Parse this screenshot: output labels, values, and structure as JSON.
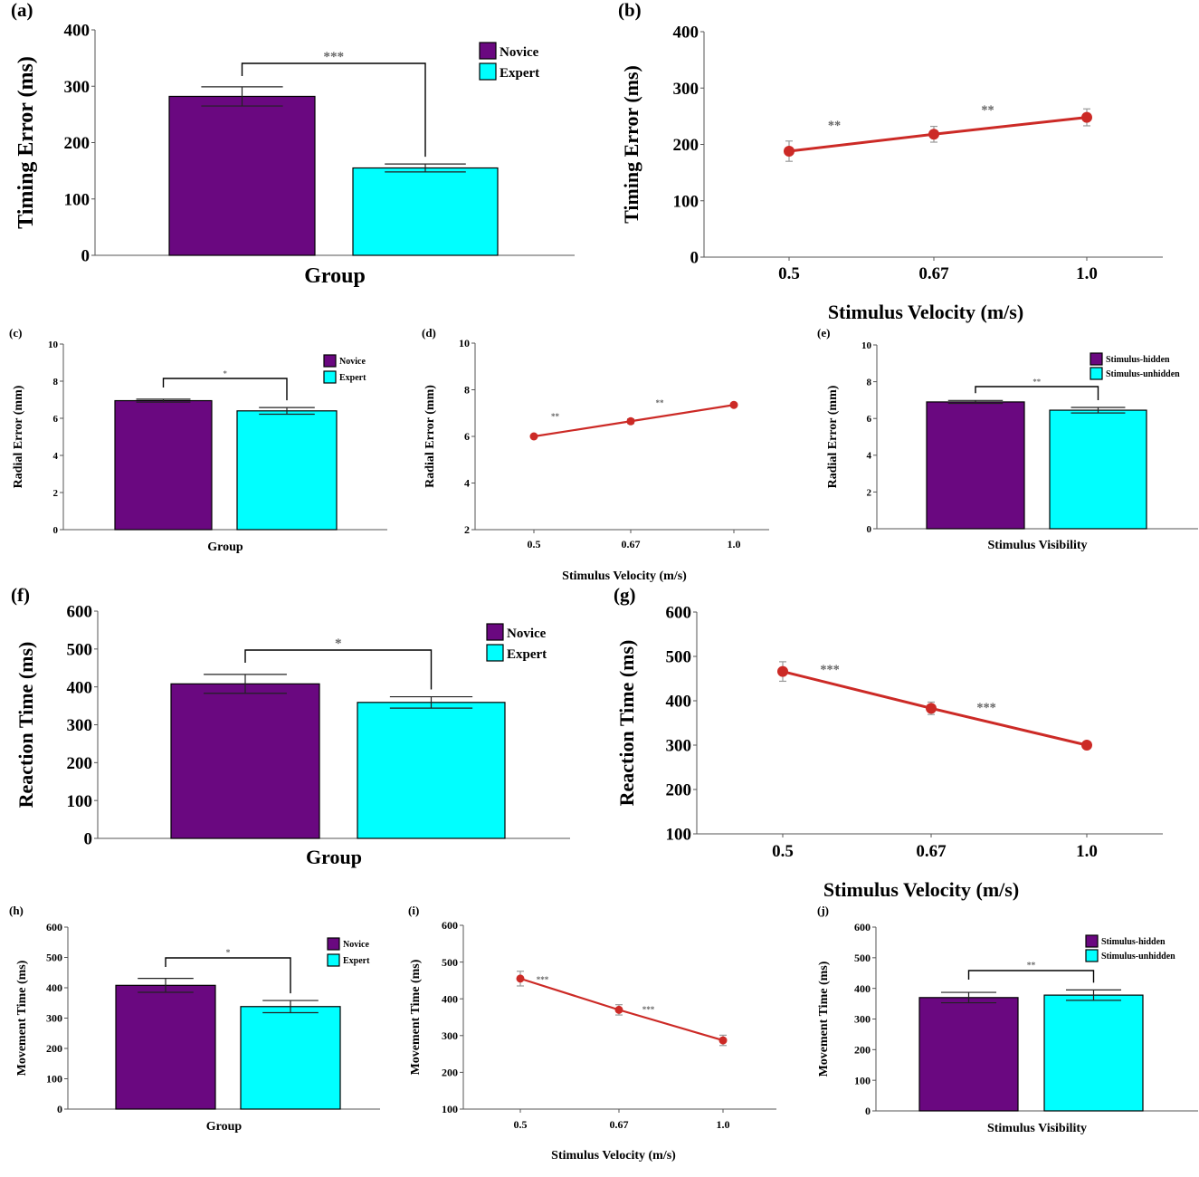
{
  "colors": {
    "novice": "#6a0880",
    "expert": "#00ffff",
    "line": "#cc2a26",
    "star": "#666666"
  },
  "chart_data": [
    {
      "panel": "(a)",
      "type": "bar",
      "categories": [
        "Novice",
        "Expert"
      ],
      "values": [
        282,
        155
      ],
      "errors": [
        17,
        7
      ],
      "legend": [
        "Novice",
        "Expert"
      ],
      "xlabel": "Group",
      "ylabel": "Timing Error (ms)",
      "ylim": [
        0,
        400
      ],
      "yticks": [
        "0",
        "100",
        "200",
        "300",
        "400"
      ],
      "significance": "***",
      "legend_position": "top-right"
    },
    {
      "panel": "(b)",
      "type": "line",
      "x": [
        "0.5",
        "0.67",
        "1.0"
      ],
      "values": [
        188,
        218,
        248
      ],
      "errors": [
        18,
        14,
        15
      ],
      "xlabel": "Stimulus Velocity (m/s)",
      "ylabel": "Timing Error (ms)",
      "ylim": [
        0,
        400
      ],
      "yticks": [
        "0",
        "100",
        "200",
        "300",
        "400"
      ],
      "significance": [
        "**",
        "**"
      ]
    },
    {
      "panel": "(c)",
      "type": "bar",
      "categories": [
        "Novice",
        "Expert"
      ],
      "values": [
        6.95,
        6.4
      ],
      "errors": [
        0.08,
        0.18
      ],
      "legend": [
        "Novice",
        "Expert"
      ],
      "xlabel": "Group",
      "ylabel": "Radial Error (mm)",
      "ylim": [
        0,
        10
      ],
      "yticks": [
        "0",
        "2",
        "4",
        "6",
        "8",
        "10"
      ],
      "significance": "*",
      "legend_position": "top-right"
    },
    {
      "panel": "(d)",
      "type": "line",
      "x": [
        "0.5",
        "0.67",
        "1.0"
      ],
      "values": [
        6.0,
        6.65,
        7.35
      ],
      "errors": [
        0.05,
        0.1,
        0.05
      ],
      "xlabel": "Stimulus Velocity (m/s)",
      "ylabel": "Radial Error (mm)",
      "ylim": [
        2,
        10
      ],
      "yticks": [
        "2",
        "4",
        "6",
        "8",
        "10"
      ],
      "significance": [
        "**",
        "**"
      ]
    },
    {
      "panel": "(e)",
      "type": "bar",
      "categories": [
        "Stimulus-hidden",
        "Stimulus-unhidden"
      ],
      "values": [
        6.9,
        6.45
      ],
      "errors": [
        0.08,
        0.15
      ],
      "legend": [
        "Stimulus-hidden",
        "Stimulus-unhidden"
      ],
      "xlabel": "Stimulus Visibility",
      "ylabel": "Radial Error (mm)",
      "ylim": [
        0,
        10
      ],
      "yticks": [
        "0",
        "2",
        "4",
        "6",
        "8",
        "10"
      ],
      "significance": "**",
      "legend_position": "top-right"
    },
    {
      "panel": "(f)",
      "type": "bar",
      "categories": [
        "Novice",
        "Expert"
      ],
      "values": [
        408,
        359
      ],
      "errors": [
        25,
        15
      ],
      "legend": [
        "Novice",
        "Expert"
      ],
      "xlabel": "Group",
      "ylabel": "Reaction Time (ms)",
      "ylim": [
        0,
        600
      ],
      "yticks": [
        "0",
        "100",
        "200",
        "300",
        "400",
        "500",
        "600"
      ],
      "significance": "*",
      "legend_position": "top-right"
    },
    {
      "panel": "(g)",
      "type": "line",
      "x": [
        "0.5",
        "0.67",
        "1.0"
      ],
      "values": [
        466,
        383,
        300
      ],
      "errors": [
        22,
        14,
        8
      ],
      "xlabel": "Stimulus Velocity (m/s)",
      "ylabel": "Reaction Time (ms)",
      "ylim": [
        100,
        600
      ],
      "yticks": [
        "100",
        "200",
        "300",
        "400",
        "500",
        "600"
      ],
      "significance": [
        "***",
        "***"
      ]
    },
    {
      "panel": "(h)",
      "type": "bar",
      "categories": [
        "Novice",
        "Expert"
      ],
      "values": [
        408,
        338
      ],
      "errors": [
        23,
        20
      ],
      "legend": [
        "Novice",
        "Expert"
      ],
      "xlabel": "Group",
      "ylabel": "Movement Time (ms)",
      "ylim": [
        0,
        600
      ],
      "yticks": [
        "0",
        "100",
        "200",
        "300",
        "400",
        "500",
        "600"
      ],
      "significance": "*",
      "legend_position": "top-right"
    },
    {
      "panel": "(i)",
      "type": "line",
      "x": [
        "0.5",
        "0.67",
        "1.0"
      ],
      "values": [
        455,
        370,
        287
      ],
      "errors": [
        20,
        14,
        14
      ],
      "xlabel": "Stimulus Velocity (m/s)",
      "ylabel": "Movement Time (ms)",
      "ylim": [
        100,
        600
      ],
      "yticks": [
        "100",
        "200",
        "300",
        "400",
        "500",
        "600"
      ],
      "significance": [
        "***",
        "***"
      ]
    },
    {
      "panel": "(j)",
      "type": "bar",
      "categories": [
        "Stimulus-hidden",
        "Stimulus-unhidden"
      ],
      "values": [
        370,
        378
      ],
      "errors": [
        17,
        17
      ],
      "legend": [
        "Stimulus-hidden",
        "Stimulus-unhidden"
      ],
      "xlabel": "Stimulus Visibility",
      "ylabel": "Movement Time (ms)",
      "ylim": [
        0,
        600
      ],
      "yticks": [
        "0",
        "100",
        "200",
        "300",
        "400",
        "500",
        "600"
      ],
      "significance": "**",
      "legend_position": "top-right"
    }
  ]
}
